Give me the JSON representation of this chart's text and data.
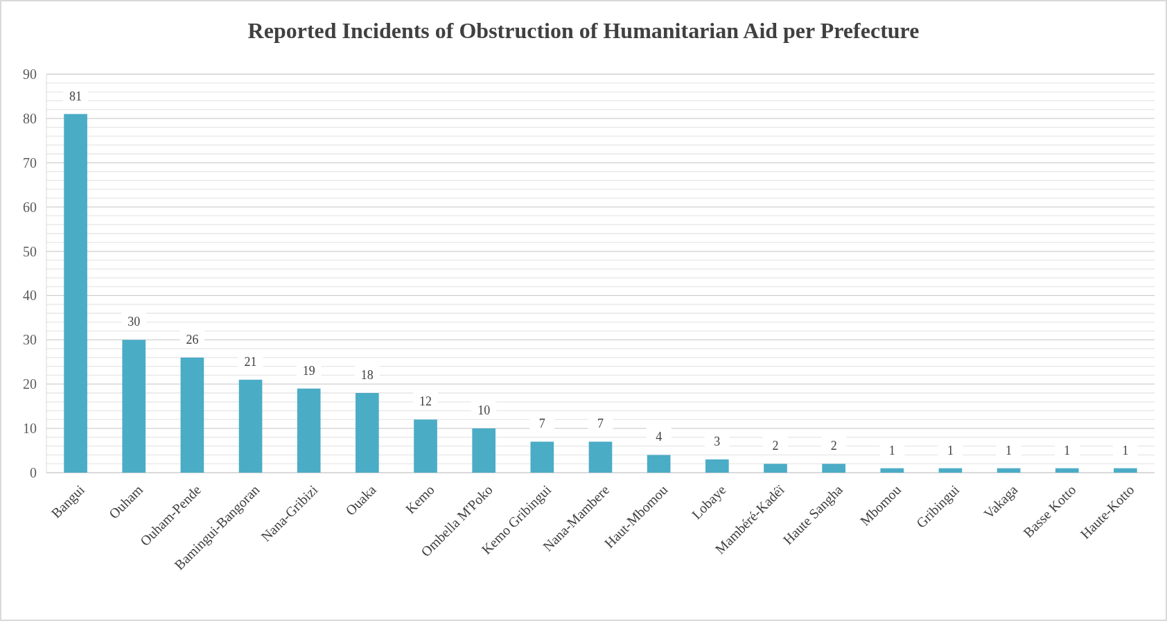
{
  "chart_data": {
    "type": "bar",
    "title": "Reported Incidents of Obstruction of Humanitarian Aid per Prefecture",
    "categories": [
      "Bangui",
      "Ouham",
      "Ouham-Pende",
      "Bamingui-Bangoran",
      "Nana-Gribizi",
      "Ouaka",
      "Kemo",
      "Ombella M'Poko",
      "Kemo Gribingui",
      "Nana-Mambere",
      "Haut-Mbomou",
      "Lobaye",
      "Mambéré-Kadéï",
      "Haute Sangha",
      "Mbomou",
      "Gribingui",
      "Vakaga",
      "Basse Kotto",
      "Haute-Kotto"
    ],
    "values": [
      81,
      30,
      26,
      21,
      19,
      18,
      12,
      10,
      7,
      7,
      4,
      3,
      2,
      2,
      1,
      1,
      1,
      1,
      1
    ],
    "color": "#4bacc6",
    "ylim": [
      0,
      90
    ],
    "yticks": [
      0,
      {
        "value": 2,
        "label": null
      },
      {
        "value": 4,
        "label": null
      },
      {
        "value": 6,
        "label": null
      },
      {
        "value": 8,
        "label": null
      },
      10,
      {
        "value": 12,
        "label": null
      },
      {
        "value": 14,
        "label": null
      },
      {
        "value": 16,
        "label": null
      },
      {
        "value": 18,
        "label": null
      },
      20,
      {
        "value": 22,
        "label": null
      },
      {
        "value": 24,
        "label": null
      },
      {
        "value": 26,
        "label": null
      },
      {
        "value": 28,
        "label": null
      },
      30,
      {
        "value": 32,
        "label": null
      },
      {
        "value": 34,
        "label": null
      },
      {
        "value": 36,
        "label": null
      },
      {
        "value": 38,
        "label": null
      },
      40,
      {
        "value": 42,
        "label": null
      },
      {
        "value": 44,
        "label": null
      },
      {
        "value": 46,
        "label": null
      },
      {
        "value": 48,
        "label": null
      },
      50,
      {
        "value": 52,
        "label": null
      },
      {
        "value": 54,
        "label": null
      },
      {
        "value": 56,
        "label": null
      },
      {
        "value": 58,
        "label": null
      },
      60,
      {
        "value": 62,
        "label": null
      },
      {
        "value": 64,
        "label": null
      },
      {
        "value": 66,
        "label": null
      },
      {
        "value": 68,
        "label": null
      },
      70,
      {
        "value": 72,
        "label": null
      },
      {
        "value": 74,
        "label": null
      },
      {
        "value": 76,
        "label": null
      },
      {
        "value": 78,
        "label": null
      },
      80,
      {
        "value": 82,
        "label": null
      },
      {
        "value": 84,
        "label": null
      },
      {
        "value": 86,
        "label": null
      },
      {
        "value": 88,
        "label": null
      },
      90
    ],
    "grid": "y",
    "data_labels": true
  }
}
